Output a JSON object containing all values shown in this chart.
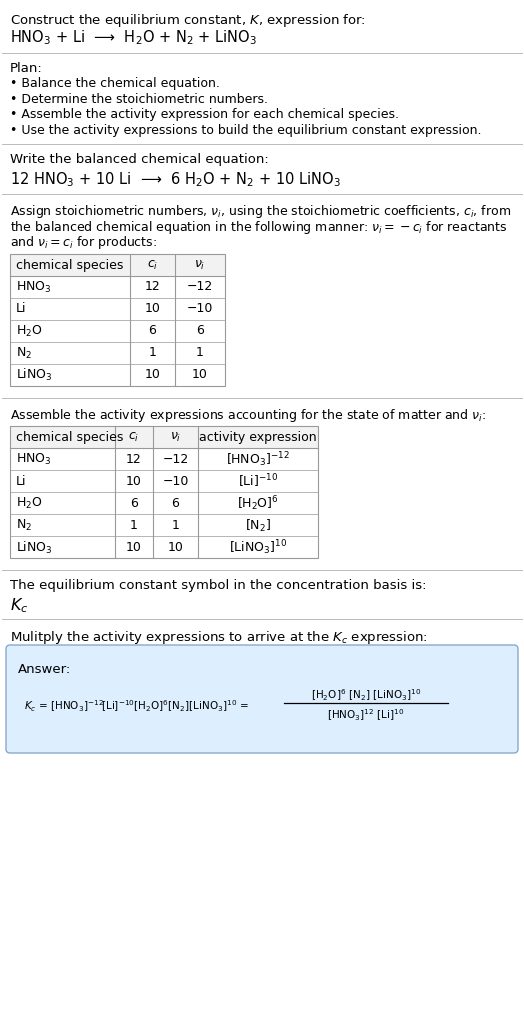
{
  "title_line1": "Construct the equilibrium constant, $K$, expression for:",
  "reaction_unbalanced": "HNO$_3$ + Li  ⟶  H$_2$O + N$_2$ + LiNO$_3$",
  "plan_header": "Plan:",
  "plan_items": [
    "• Balance the chemical equation.",
    "• Determine the stoichiometric numbers.",
    "• Assemble the activity expression for each chemical species.",
    "• Use the activity expressions to build the equilibrium constant expression."
  ],
  "balanced_header": "Write the balanced chemical equation:",
  "reaction_balanced": "12 HNO$_3$ + 10 Li  ⟶  6 H$_2$O + N$_2$ + 10 LiNO$_3$",
  "stoich_header_lines": [
    "Assign stoichiometric numbers, $\\nu_i$, using the stoichiometric coefficients, $c_i$, from",
    "the balanced chemical equation in the following manner: $\\nu_i = -c_i$ for reactants",
    "and $\\nu_i = c_i$ for products:"
  ],
  "table1_cols": [
    "chemical species",
    "$c_i$",
    "$\\nu_i$"
  ],
  "table1_rows": [
    [
      "HNO$_3$",
      "12",
      "−12"
    ],
    [
      "Li",
      "10",
      "−10"
    ],
    [
      "H$_2$O",
      "6",
      "6"
    ],
    [
      "N$_2$",
      "1",
      "1"
    ],
    [
      "LiNO$_3$",
      "10",
      "10"
    ]
  ],
  "activity_header": "Assemble the activity expressions accounting for the state of matter and $\\nu_i$:",
  "table2_cols": [
    "chemical species",
    "$c_i$",
    "$\\nu_i$",
    "activity expression"
  ],
  "table2_rows": [
    [
      "HNO$_3$",
      "12",
      "−12",
      "[HNO$_3$]$^{-12}$"
    ],
    [
      "Li",
      "10",
      "−10",
      "[Li]$^{-10}$"
    ],
    [
      "H$_2$O",
      "6",
      "6",
      "[H$_2$O]$^6$"
    ],
    [
      "N$_2$",
      "1",
      "1",
      "[N$_2$]"
    ],
    [
      "LiNO$_3$",
      "10",
      "10",
      "[LiNO$_3$]$^{10}$"
    ]
  ],
  "kc_text": "The equilibrium constant symbol in the concentration basis is:",
  "kc_symbol": "$K_c$",
  "multiply_header": "Mulitply the activity expressions to arrive at the $K_c$ expression:",
  "answer_label": "Answer:",
  "answer_box_color": "#ddeeff",
  "answer_border_color": "#88aacc",
  "bg_color": "#ffffff",
  "text_color": "#000000",
  "table_border_color": "#999999",
  "separator_color": "#bbbbbb",
  "font_size": 9.5,
  "small_font_size": 9.0
}
